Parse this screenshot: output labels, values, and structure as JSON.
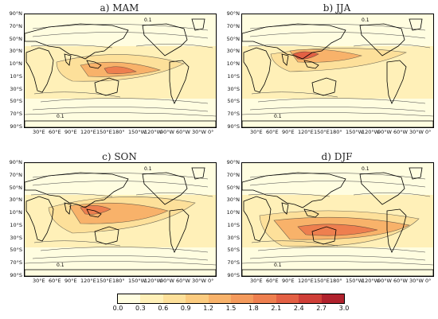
{
  "panels": [
    {
      "title": "a) MAM",
      "key": "mam"
    },
    {
      "title": "b) JJA",
      "key": "jja"
    },
    {
      "title": "c) SON",
      "key": "son"
    },
    {
      "title": "d) DJF",
      "key": "djf"
    }
  ],
  "lat_labels": [
    "90°N",
    "70°N",
    "50°N",
    "30°N",
    "10°N",
    "10°S",
    "30°S",
    "50°S",
    "70°S",
    "90°S"
  ],
  "lon_labels": [
    "30°E",
    "60°E",
    "90°E",
    "120°E",
    "150°E",
    "180°",
    "150°W",
    "120°W",
    "90°W",
    "60°W",
    "30°W",
    "0°"
  ],
  "contour_labels": {
    "upper": "0.1",
    "lower": "0.1"
  },
  "colorbar": {
    "ticks": [
      "0.0",
      "0.3",
      "0.6",
      "0.9",
      "1.2",
      "1.5",
      "1.8",
      "2.1",
      "2.4",
      "2.7",
      "3.0"
    ],
    "colors": [
      "#fffde0",
      "#fff0b8",
      "#fde09a",
      "#fbcb7f",
      "#f8b26a",
      "#f49a5c",
      "#ee7f4f",
      "#e36044",
      "#cf3f38",
      "#b0222d"
    ]
  }
}
